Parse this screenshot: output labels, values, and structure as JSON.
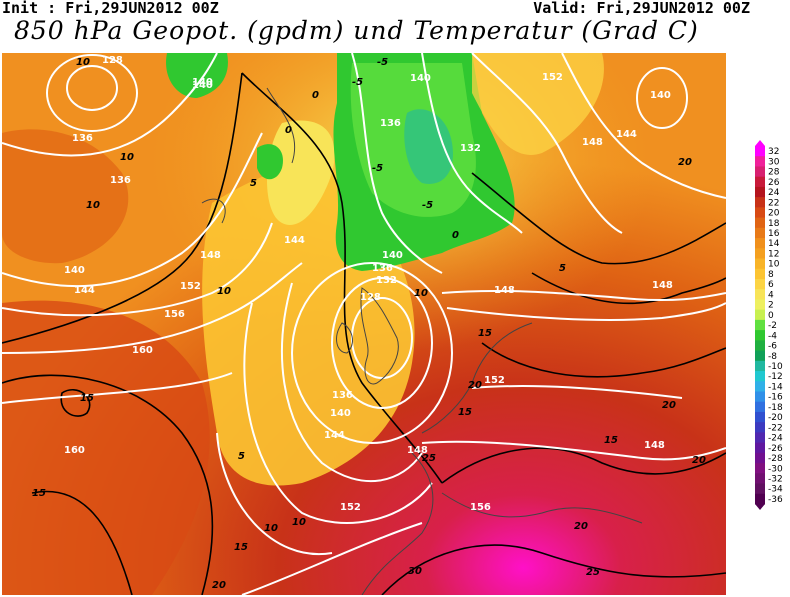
{
  "header": {
    "init": "Init : Fri,29JUN2012 00Z",
    "valid": "Valid: Fri,29JUN2012 00Z",
    "title": "850 hPa Geopot. (gpdm) und Temperatur (Grad C)"
  },
  "map": {
    "geopotential_labels": [
      "128",
      "140",
      "136",
      "140",
      "136",
      "148",
      "144",
      "152",
      "156",
      "160",
      "140",
      "144",
      "140",
      "136",
      "132",
      "128",
      "136",
      "140",
      "144",
      "148",
      "152",
      "156",
      "136",
      "140",
      "132",
      "148",
      "152",
      "148",
      "148",
      "140",
      "144",
      "148",
      "152",
      "160"
    ],
    "temperature_labels": [
      "10",
      "10",
      "10",
      "5",
      "0",
      "-5",
      "-5",
      "-5",
      "0",
      "5",
      "10",
      "15",
      "20",
      "15",
      "10",
      "15",
      "20",
      "25",
      "15",
      "20",
      "20",
      "25",
      "30",
      "20",
      "15",
      "10",
      "5",
      "0",
      "-5",
      "10",
      "15",
      "20"
    ]
  },
  "legend": {
    "values": [
      "32",
      "30",
      "28",
      "26",
      "24",
      "22",
      "20",
      "18",
      "16",
      "14",
      "12",
      "10",
      "8",
      "6",
      "4",
      "2",
      "0",
      "-2",
      "-4",
      "-6",
      "-8",
      "-10",
      "-12",
      "-14",
      "-16",
      "-18",
      "-20",
      "-22",
      "-24",
      "-26",
      "-28",
      "-30",
      "-32",
      "-34",
      "-36"
    ],
    "colors": [
      "#ff00ff",
      "#f0209a",
      "#d82070",
      "#c81a3a",
      "#b4141e",
      "#c83218",
      "#d84a14",
      "#e06414",
      "#e87a18",
      "#f0901c",
      "#f4a020",
      "#f8b428",
      "#fcc432",
      "#fcd444",
      "#f8e458",
      "#eef060",
      "#c8f050",
      "#60e040",
      "#30c830",
      "#20b040",
      "#10a058",
      "#20b8a0",
      "#20c8d0",
      "#30b0e8",
      "#3090e8",
      "#3070e0",
      "#3050d0",
      "#3c3ac0",
      "#5028b0",
      "#6018a0",
      "#701090",
      "#801080",
      "#701070",
      "#601060",
      "#500050"
    ]
  }
}
